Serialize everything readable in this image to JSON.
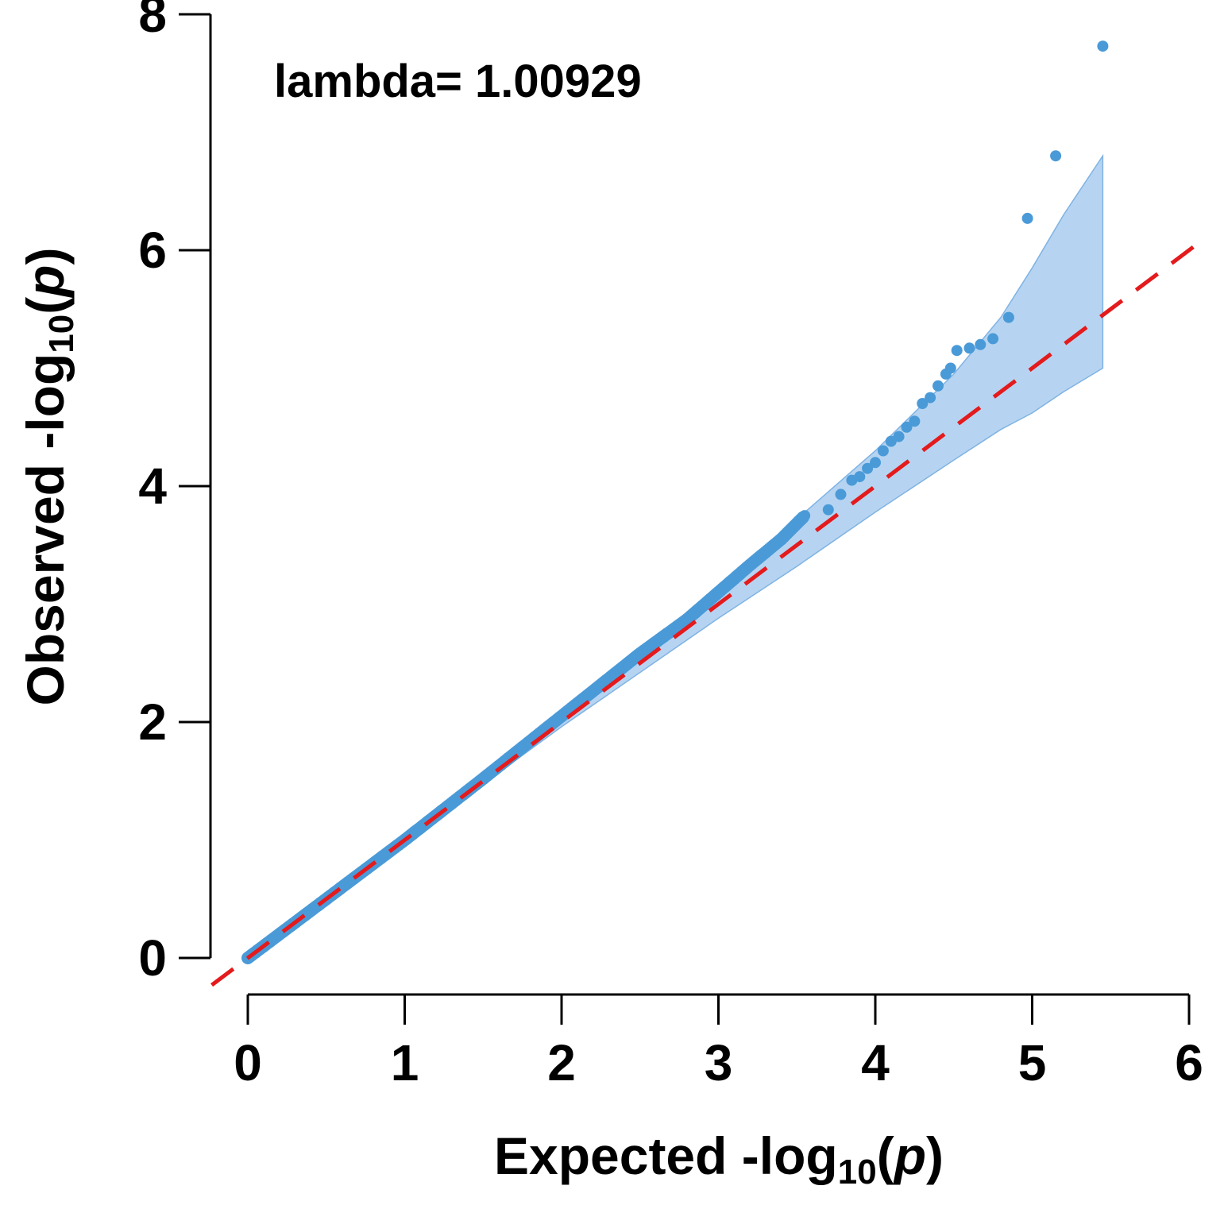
{
  "chart_data": {
    "type": "scatter",
    "title": "",
    "xlabel": "Expected -log10(p)",
    "ylabel": "Observed -log10(p)",
    "xlabel_parts": {
      "prefix": "Expected -log",
      "sub": "10",
      "open": "(",
      "var": "p",
      "close": ")"
    },
    "ylabel_parts": {
      "prefix": "Observed -log",
      "sub": "10",
      "open": "(",
      "var": "p",
      "close": ")"
    },
    "xlim": [
      0,
      6
    ],
    "ylim": [
      0,
      8
    ],
    "x_ticks": [
      0,
      1,
      2,
      3,
      4,
      5,
      6
    ],
    "y_ticks": [
      0,
      2,
      4,
      6,
      8
    ],
    "annotation": "lambda= 1.00929",
    "colors": {
      "points": "#4a9ad8",
      "band": "#a9cdef",
      "band_edge": "#7fb3e3",
      "reference": "#e41a1c"
    },
    "reference_line": {
      "name": "y = x",
      "slope": 1,
      "intercept": 0,
      "style": "dashed"
    },
    "confidence_band": {
      "x": [
        0,
        1,
        2,
        3,
        3.5,
        4,
        4.5,
        4.8,
        5.0,
        5.2,
        5.45
      ],
      "lower": [
        0,
        0.99,
        1.96,
        2.88,
        3.32,
        3.78,
        4.22,
        4.48,
        4.62,
        4.8,
        5.0
      ],
      "upper": [
        0,
        1.01,
        2.05,
        3.12,
        3.72,
        4.3,
        4.95,
        5.43,
        5.85,
        6.3,
        6.8
      ]
    },
    "series": [
      {
        "name": "observed",
        "points": [
          [
            0,
            0
          ],
          [
            0.5,
            0.5
          ],
          [
            1.0,
            1.0
          ],
          [
            1.5,
            1.52
          ],
          [
            2.0,
            2.05
          ],
          [
            2.5,
            2.58
          ],
          [
            2.8,
            2.87
          ],
          [
            3.0,
            3.1
          ],
          [
            3.2,
            3.33
          ],
          [
            3.4,
            3.55
          ],
          [
            3.55,
            3.75
          ],
          [
            3.7,
            3.8
          ],
          [
            3.78,
            3.93
          ],
          [
            3.85,
            4.05
          ],
          [
            3.9,
            4.08
          ],
          [
            3.95,
            4.15
          ],
          [
            4.0,
            4.2
          ],
          [
            4.05,
            4.3
          ],
          [
            4.1,
            4.38
          ],
          [
            4.15,
            4.42
          ],
          [
            4.2,
            4.5
          ],
          [
            4.25,
            4.55
          ],
          [
            4.3,
            4.7
          ],
          [
            4.35,
            4.75
          ],
          [
            4.4,
            4.85
          ],
          [
            4.45,
            4.95
          ],
          [
            4.48,
            5.0
          ],
          [
            4.52,
            5.15
          ],
          [
            4.6,
            5.17
          ],
          [
            4.67,
            5.2
          ],
          [
            4.75,
            5.25
          ],
          [
            4.85,
            5.43
          ],
          [
            4.97,
            6.27
          ],
          [
            5.15,
            6.8
          ],
          [
            5.45,
            7.73
          ]
        ]
      }
    ]
  }
}
